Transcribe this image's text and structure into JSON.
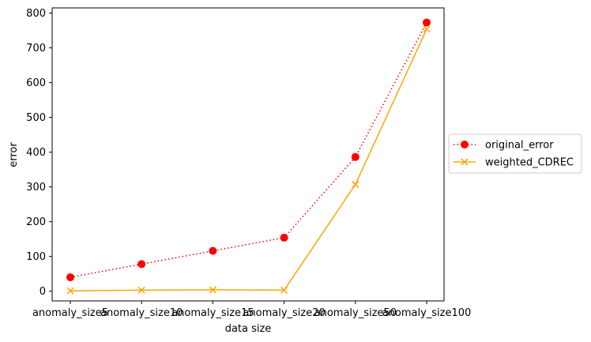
{
  "chart_data": {
    "type": "line",
    "title": "",
    "xlabel": "data size",
    "ylabel": "error",
    "categories": [
      "anomaly_size5",
      "anomaly_size10",
      "anomaly_size15",
      "anomaly_size20",
      "anomaly_size50",
      "anomaly_size100"
    ],
    "ylim": [
      -28,
      815
    ],
    "yticks": [
      0,
      100,
      200,
      300,
      400,
      500,
      600,
      700,
      800
    ],
    "grid": false,
    "legend_position": "outside-right",
    "series": [
      {
        "name": "original_error",
        "values": [
          40,
          78,
          116,
          154,
          386,
          773
        ],
        "color": "#ff0000",
        "line_style": "dotted",
        "marker": "circle"
      },
      {
        "name": "weighted_CDREC",
        "values": [
          1,
          3,
          4,
          3,
          307,
          754
        ],
        "color": "#ffa500",
        "line_style": "solid",
        "marker": "x"
      }
    ]
  }
}
